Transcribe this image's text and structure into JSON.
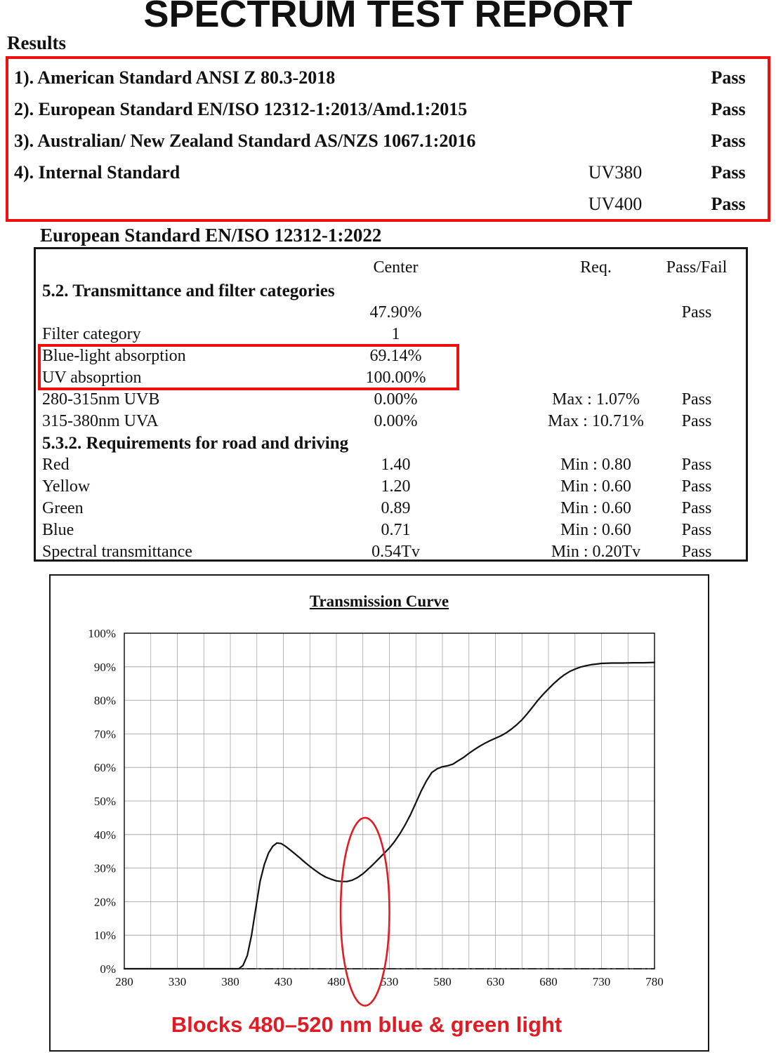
{
  "title": "SPECTRUM TEST REPORT",
  "colors": {
    "box_red": "#ee0f0f",
    "annotation_red": "#e01b24",
    "ink": "#111111"
  },
  "results": {
    "heading": "Results",
    "items": [
      {
        "label": "1). American Standard ANSI Z 80.3-2018",
        "sub": "",
        "status": "Pass"
      },
      {
        "label": "2). European Standard EN/ISO 12312-1:2013/Amd.1:2015",
        "sub": "",
        "status": "Pass"
      },
      {
        "label": "3). Australian/ New Zealand Standard AS/NZS 1067.1:2016",
        "sub": "",
        "status": "Pass"
      },
      {
        "label": "4). Internal Standard",
        "sub": "UV380",
        "status": "Pass"
      },
      {
        "label": "",
        "sub": "UV400",
        "status": "Pass"
      }
    ]
  },
  "table": {
    "heading": "European Standard EN/ISO 12312-1:2022",
    "columns": {
      "center": "Center",
      "req": "Req.",
      "passfail": "Pass/Fail"
    },
    "rows": [
      {
        "label": "5.2. Transmittance and filter categories",
        "center": "",
        "req": "",
        "status": "",
        "bold": true,
        "highlighted": false
      },
      {
        "label": "",
        "center": "47.90%",
        "req": "",
        "status": "Pass",
        "bold": false,
        "highlighted": false
      },
      {
        "label": "Filter category",
        "center": "1",
        "req": "",
        "status": "",
        "bold": false,
        "highlighted": false
      },
      {
        "label": "Blue-light absorption",
        "center": "69.14%",
        "req": "",
        "status": "",
        "bold": false,
        "highlighted": true
      },
      {
        "label": "UV absoprtion",
        "center": "100.00%",
        "req": "",
        "status": "",
        "bold": false,
        "highlighted": true
      },
      {
        "label": "280-315nm UVB",
        "center": "0.00%",
        "req": "Max : 1.07%",
        "status": "Pass",
        "bold": false,
        "highlighted": false
      },
      {
        "label": "315-380nm UVA",
        "center": "0.00%",
        "req": "Max : 10.71%",
        "status": "Pass",
        "bold": false,
        "highlighted": false
      },
      {
        "label": "5.3.2. Requirements for road and driving",
        "center": "",
        "req": "",
        "status": "",
        "bold": true,
        "highlighted": false
      },
      {
        "label": "Red",
        "center": "1.40",
        "req": "Min : 0.80",
        "status": "Pass",
        "bold": false,
        "highlighted": false
      },
      {
        "label": "Yellow",
        "center": "1.20",
        "req": "Min : 0.60",
        "status": "Pass",
        "bold": false,
        "highlighted": false
      },
      {
        "label": "Green",
        "center": "0.89",
        "req": "Min : 0.60",
        "status": "Pass",
        "bold": false,
        "highlighted": false
      },
      {
        "label": "Blue",
        "center": "0.71",
        "req": "Min : 0.60",
        "status": "Pass",
        "bold": false,
        "highlighted": false
      },
      {
        "label": "Spectral transmittance",
        "center": "0.54Tv",
        "req": "Min : 0.20Tv",
        "status": "Pass",
        "bold": false,
        "highlighted": false
      }
    ]
  },
  "chart_data": {
    "type": "line",
    "title": "Transmission Curve",
    "xlim": [
      280,
      780
    ],
    "ylim": [
      0,
      100
    ],
    "x_tick_step": 50,
    "x_minor_step": 25,
    "y_tick_step": 10,
    "y_tick_suffix": "%",
    "grid": true,
    "legend": "none",
    "series": [
      {
        "name": "transmission",
        "style": "solid",
        "x": [
          280,
          300,
          320,
          340,
          360,
          380,
          388,
          392,
          396,
          400,
          404,
          408,
          412,
          416,
          420,
          424,
          428,
          432,
          436,
          440,
          445,
          450,
          455,
          460,
          465,
          470,
          475,
          480,
          485,
          490,
          495,
          500,
          505,
          510,
          515,
          520,
          525,
          530,
          535,
          540,
          545,
          550,
          555,
          560,
          565,
          570,
          575,
          580,
          585,
          590,
          595,
          600,
          605,
          610,
          615,
          620,
          625,
          630,
          635,
          640,
          645,
          650,
          655,
          660,
          665,
          670,
          675,
          680,
          685,
          690,
          695,
          700,
          705,
          710,
          715,
          720,
          725,
          730,
          740,
          750,
          760,
          770,
          780
        ],
        "y": [
          0,
          0,
          0,
          0,
          0,
          0,
          0,
          1,
          4,
          10,
          18,
          26,
          31,
          34.5,
          36.5,
          37.5,
          37.3,
          36.5,
          35.5,
          34.5,
          33.2,
          31.8,
          30.5,
          29.3,
          28.2,
          27.3,
          26.7,
          26.2,
          26,
          26,
          26.4,
          27.2,
          28.3,
          29.7,
          31.2,
          32.8,
          34.4,
          36,
          38,
          40.3,
          43,
          46,
          49.5,
          53,
          56,
          58.5,
          59.6,
          60.2,
          60.5,
          61,
          62,
          63,
          64.2,
          65.3,
          66.3,
          67.2,
          68,
          68.7,
          69.4,
          70.3,
          71.4,
          72.7,
          74.2,
          76,
          78,
          80,
          81.8,
          83.4,
          85,
          86.4,
          87.6,
          88.6,
          89.3,
          89.9,
          90.3,
          90.6,
          90.8,
          91,
          91.1,
          91.1,
          91.2,
          91.2,
          91.3
        ]
      },
      {
        "name": "zero-baseline",
        "style": "dash-dot",
        "y_const": 0
      }
    ],
    "annotation_ellipse": {
      "center_nm": 507,
      "center_pct": 17,
      "rx_nm": 23,
      "ry_pct": 28
    },
    "annotation_text": "Blocks 480–520 nm blue & green light"
  }
}
